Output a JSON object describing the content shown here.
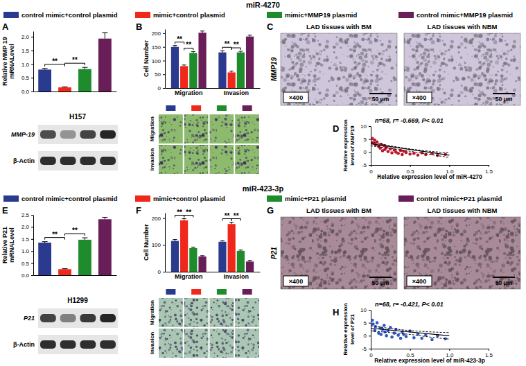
{
  "sections": [
    {
      "title": "miR-4270"
    },
    {
      "title": "miR-423-3p"
    }
  ],
  "chart_data": [
    {
      "type": "bar",
      "panel": "A",
      "y_label": [
        "Relative MMP 19",
        "mRNALevel"
      ],
      "categories": [
        null,
        null,
        null,
        null
      ],
      "values": [
        0.8,
        0.15,
        0.82,
        1.93
      ],
      "errors": [
        0.04,
        0.02,
        0.06,
        0.22
      ],
      "colors": [
        "#2a3b8f",
        "#f0281c",
        "#1e8c2c",
        "#6a1e58"
      ],
      "ylim": [
        0,
        2.2
      ],
      "yticks": [
        {
          "value": 0,
          "label": "0.0"
        },
        {
          "value": 0.5,
          "label": "0.5"
        },
        {
          "value": 1,
          "label": "1.0"
        },
        {
          "value": 1.5,
          "label": "1.5"
        },
        {
          "value": 2,
          "label": "2.0"
        }
      ],
      "significance": [
        {
          "pair": [
            0,
            1
          ],
          "label": "**"
        },
        {
          "pair": [
            1,
            2
          ],
          "label": "**"
        }
      ],
      "blot": {
        "cell_line": "H157",
        "rows": [
          {
            "label": "MMP-19",
            "bands": [
              0.75,
              0.4,
              0.8,
              0.95
            ]
          },
          {
            "label": "β-Actin",
            "bands": [
              0.9,
              0.9,
              0.9,
              0.9
            ]
          }
        ]
      }
    },
    {
      "type": "grouped_bar",
      "panel": "B",
      "y_label": "Cell Number",
      "categories": [
        "Migration",
        "Invasion"
      ],
      "series": [
        {
          "name": "control mimic+control plasmid",
          "color": "#2a3b8f",
          "values": [
            150,
            130
          ],
          "errors": [
            5,
            6
          ]
        },
        {
          "name": "mimic+control plasmid",
          "color": "#f0281c",
          "values": [
            80,
            57
          ],
          "errors": [
            4,
            5
          ]
        },
        {
          "name": "mimic+MMP19 plasmid",
          "color": "#1e8c2c",
          "values": [
            128,
            130
          ],
          "errors": [
            5,
            4
          ]
        },
        {
          "name": "control mimic+MMP19 plasmid",
          "color": "#6a1e58",
          "values": [
            202,
            188
          ],
          "errors": [
            6,
            5
          ]
        }
      ],
      "ylim": [
        0,
        215
      ],
      "yticks": [
        0,
        50,
        100,
        150,
        200
      ],
      "significance": [
        {
          "category": 0,
          "pair": [
            0,
            1
          ],
          "label": "**"
        },
        {
          "category": 0,
          "pair": [
            1,
            2
          ],
          "label": "**"
        },
        {
          "category": 1,
          "pair": [
            0,
            1
          ],
          "label": "**"
        },
        {
          "category": 1,
          "pair": [
            1,
            2
          ],
          "label": "**"
        }
      ],
      "image_rows": [
        "Migration",
        "Invasion"
      ],
      "image_color": "#8dbb6e"
    },
    {
      "type": "micrograph",
      "panel": "C",
      "row_label": "MMP19",
      "color": "#cfc6dc",
      "images": [
        {
          "title": "LAD tissues with BM",
          "magnification": "×400",
          "scale_bar": "50 μm"
        },
        {
          "title": "LAD tissues with NBM",
          "magnification": "×400",
          "scale_bar": "50 μm"
        }
      ]
    },
    {
      "type": "scatter",
      "panel": "D",
      "annotation": "n=68, r= -0.669, P< 0.01",
      "x_label": "Relative expression level of miR-4270",
      "y_label": [
        "Relative expression",
        "level of MMP19"
      ],
      "x": [
        0.02,
        0.03,
        0.05,
        0.06,
        0.08,
        0.1,
        0.12,
        0.13,
        0.15,
        0.17,
        0.18,
        0.2,
        0.22,
        0.25,
        0.27,
        0.3,
        0.32,
        0.35,
        0.38,
        0.4,
        0.42,
        0.45,
        0.5,
        0.55,
        0.6,
        0.65,
        0.7,
        0.78,
        0.85,
        0.95
      ],
      "values": [
        5.2,
        3.5,
        4.6,
        2.8,
        3.9,
        2.2,
        1.5,
        3.0,
        0.5,
        2.5,
        1.0,
        1.8,
        0.2,
        1.2,
        -0.3,
        0.8,
        0.0,
        -0.5,
        0.6,
        -1.0,
        0.3,
        -0.2,
        -0.8,
        -0.5,
        -1.2,
        -0.3,
        -1.0,
        -0.6,
        -1.3,
        -0.9
      ],
      "color": "#c0152a",
      "fit": {
        "x": [
          0,
          1
        ],
        "values": [
          3.2,
          -1.2
        ]
      },
      "ci": {
        "x": [
          0,
          0.25,
          0.5,
          0.75,
          1
        ],
        "upper": [
          4.0,
          2.4,
          1.2,
          0.3,
          -0.3
        ],
        "lower": [
          2.4,
          1.4,
          0.3,
          -0.9,
          -2.1
        ]
      },
      "xlim": [
        0,
        1.5
      ],
      "xticks": [
        0,
        0.5,
        {
          "value": 1,
          "label": "1.0"
        },
        1.5
      ],
      "ylim": [
        -5,
        10
      ],
      "yticks": [
        -5,
        0,
        5,
        10
      ]
    },
    {
      "type": "bar",
      "panel": "E",
      "y_label": [
        "Relative P21",
        "mRNALevel"
      ],
      "categories": [
        null,
        null,
        null,
        null
      ],
      "values": [
        1.35,
        0.25,
        1.47,
        2.32
      ],
      "errors": [
        0.04,
        0.02,
        0.08,
        0.08
      ],
      "colors": [
        "#2a3b8f",
        "#f0281c",
        "#1e8c2c",
        "#6a1e58"
      ],
      "ylim": [
        0,
        2.5
      ],
      "yticks": [
        {
          "value": 0,
          "label": "0.0"
        },
        {
          "value": 0.5,
          "label": "0.5"
        },
        {
          "value": 1,
          "label": "1.0"
        },
        {
          "value": 1.5,
          "label": "1.5"
        },
        {
          "value": 2,
          "label": "2.0"
        },
        {
          "value": 2.5,
          "label": "2.5"
        }
      ],
      "significance": [
        {
          "pair": [
            0,
            1
          ],
          "label": "**"
        },
        {
          "pair": [
            1,
            2
          ],
          "label": "**"
        }
      ],
      "blot": {
        "cell_line": "H1299",
        "rows": [
          {
            "label": "P21",
            "bands": [
              0.8,
              0.5,
              0.85,
              0.95
            ]
          },
          {
            "label": "β-Actin",
            "bands": [
              0.9,
              0.9,
              0.9,
              0.9
            ]
          }
        ]
      }
    },
    {
      "type": "grouped_bar",
      "panel": "F",
      "y_label": "Cell Number",
      "categories": [
        "Migration",
        "Invasion"
      ],
      "series": [
        {
          "name": "control mimic+control plasmid",
          "color": "#2a3b8f",
          "values": [
            115,
            112
          ],
          "errors": [
            5,
            4
          ]
        },
        {
          "name": "mimic+control plasmid",
          "color": "#f0281c",
          "values": [
            192,
            178
          ],
          "errors": [
            6,
            7
          ]
        },
        {
          "name": "mimic+P21 plasmid",
          "color": "#1e8c2c",
          "values": [
            88,
            78
          ],
          "errors": [
            4,
            3
          ]
        },
        {
          "name": "control mimic+P21 plasmid",
          "color": "#6a1e58",
          "values": [
            57,
            38
          ],
          "errors": [
            3,
            4
          ]
        }
      ],
      "ylim": [
        0,
        220
      ],
      "yticks": [
        0,
        100,
        200
      ],
      "significance": [
        {
          "category": 0,
          "pair": [
            0,
            1
          ],
          "label": "**"
        },
        {
          "category": 0,
          "pair": [
            1,
            2
          ],
          "label": "**"
        },
        {
          "category": 1,
          "pair": [
            0,
            1
          ],
          "label": "**"
        },
        {
          "category": 1,
          "pair": [
            1,
            2
          ],
          "label": "**"
        }
      ],
      "image_rows": [
        "Migration",
        "Invasion"
      ],
      "image_color": "#a9c7b3"
    },
    {
      "type": "micrograph",
      "panel": "G",
      "row_label": "P21",
      "color": "#a88a98",
      "images": [
        {
          "title": "LAD tissues with BM",
          "magnification": "×400",
          "scale_bar": "50 μm"
        },
        {
          "title": "LAD tissues with NBM",
          "magnification": "×400",
          "scale_bar": "50 μm"
        }
      ]
    },
    {
      "type": "scatter",
      "panel": "H",
      "annotation": "n=68, r= -0.421, P< 0.01",
      "x_label": "Relative expression level of miR-423-3p",
      "y_label": [
        "Relative expression",
        "level of P21"
      ],
      "x": [
        0.02,
        0.03,
        0.05,
        0.06,
        0.08,
        0.1,
        0.12,
        0.13,
        0.15,
        0.17,
        0.18,
        0.2,
        0.22,
        0.25,
        0.27,
        0.3,
        0.32,
        0.35,
        0.38,
        0.4,
        0.42,
        0.45,
        0.5,
        0.55,
        0.6,
        0.65,
        0.7,
        0.78,
        0.85,
        0.95
      ],
      "values": [
        6.0,
        4.5,
        2.0,
        3.5,
        5.0,
        1.0,
        3.0,
        0.5,
        2.5,
        4.0,
        1.5,
        0.0,
        2.0,
        3.2,
        -0.5,
        1.0,
        2.5,
        0.2,
        -1.0,
        1.5,
        0.5,
        -0.3,
        1.8,
        -0.8,
        0.6,
        -1.0,
        0.3,
        -1.5,
        0.0,
        -1.2
      ],
      "color": "#2f56c8",
      "fit": {
        "x": [
          0,
          1
        ],
        "values": [
          2.9,
          0.0
        ]
      },
      "ci": {
        "x": [
          0,
          0.25,
          0.5,
          0.75,
          1
        ],
        "upper": [
          3.9,
          2.8,
          2.0,
          1.5,
          1.2
        ],
        "lower": [
          1.9,
          1.2,
          0.5,
          -0.5,
          -1.3
        ]
      },
      "xlim": [
        0,
        1.5
      ],
      "xticks": [
        0,
        0.5,
        {
          "value": 1,
          "label": "1.0"
        },
        1.5
      ],
      "ylim": [
        -5,
        10
      ],
      "yticks": [
        -5,
        0,
        5,
        10
      ]
    }
  ]
}
